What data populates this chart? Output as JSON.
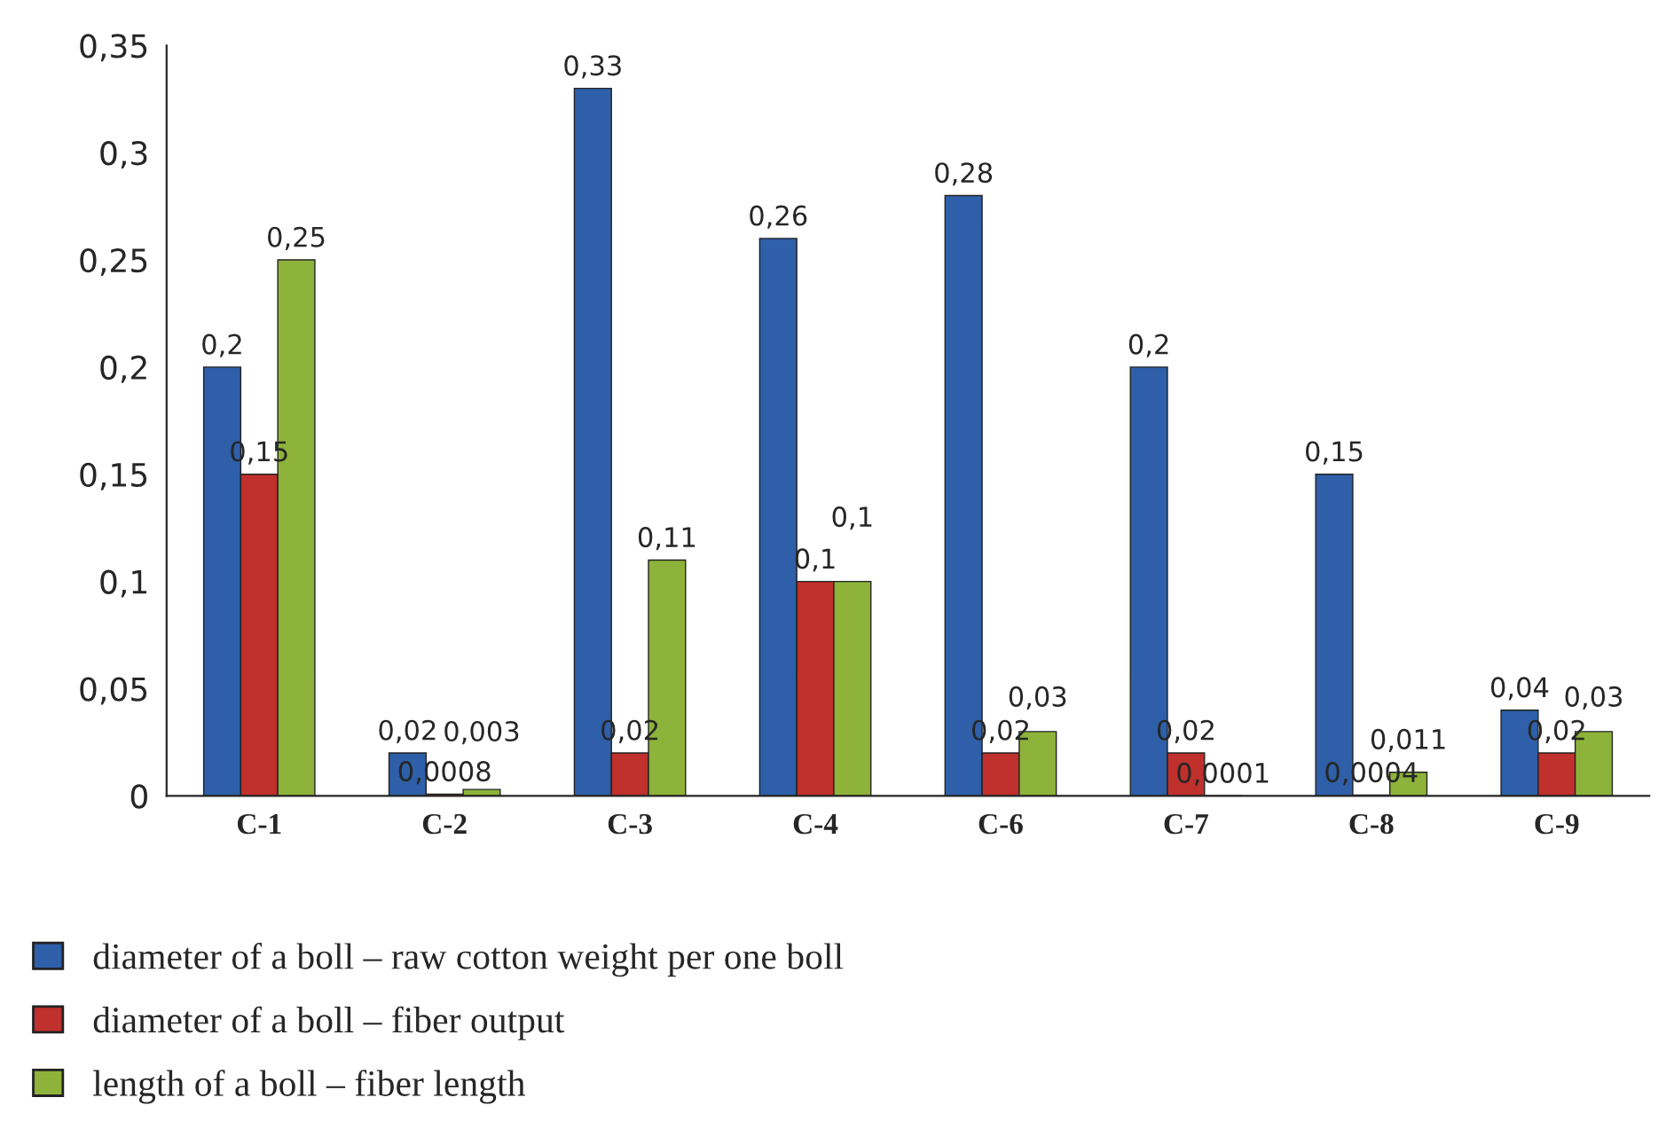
{
  "chart_data": {
    "type": "bar",
    "categories": [
      "C-1",
      "C-2",
      "C-3",
      "C-4",
      "C-6",
      "C-7",
      "C-8",
      "C-9"
    ],
    "series": [
      {
        "name": "diameter of a boll – raw cotton weight per one boll",
        "color": "#2e5fa8",
        "values": [
          0.2,
          0.02,
          0.33,
          0.26,
          0.28,
          0.2,
          0.15,
          0.04
        ],
        "value_labels": [
          "0,2",
          "0,02",
          "0,33",
          "0,26",
          "0,28",
          "0,2",
          "0,15",
          "0,04"
        ]
      },
      {
        "name": "diameter of a boll – fiber output",
        "color": "#c0302c",
        "values": [
          0.15,
          0.0008,
          0.02,
          0.1,
          0.02,
          0.02,
          0.0004,
          0.02
        ],
        "value_labels": [
          "0,15",
          "0,0008",
          "0,02",
          "0,1",
          "0,02",
          "0,02",
          "0,0004",
          "0,02"
        ]
      },
      {
        "name": "length of a boll – fiber length",
        "color": "#8db33a",
        "values": [
          0.25,
          0.003,
          0.11,
          0.1,
          0.03,
          0.0001,
          0.011,
          0.03
        ],
        "value_labels": [
          "0,25",
          "0,003",
          "0,11",
          "0,1",
          "0,03",
          "0,0001",
          "0,011",
          "0,03"
        ]
      }
    ],
    "ylim": [
      0,
      0.35
    ],
    "yticks": [
      0,
      {
        "value": 0.05,
        "label": "0,05"
      },
      {
        "value": 0.1,
        "label": "0,1"
      },
      {
        "value": 0.15,
        "label": "0,15"
      },
      {
        "value": 0.2,
        "label": "0,2"
      },
      {
        "value": 0.25,
        "label": "0,25"
      },
      {
        "value": 0.3,
        "label": "0,3"
      },
      {
        "value": 0.35,
        "label": "0,35"
      }
    ],
    "grid": false,
    "legend": "bottom"
  }
}
